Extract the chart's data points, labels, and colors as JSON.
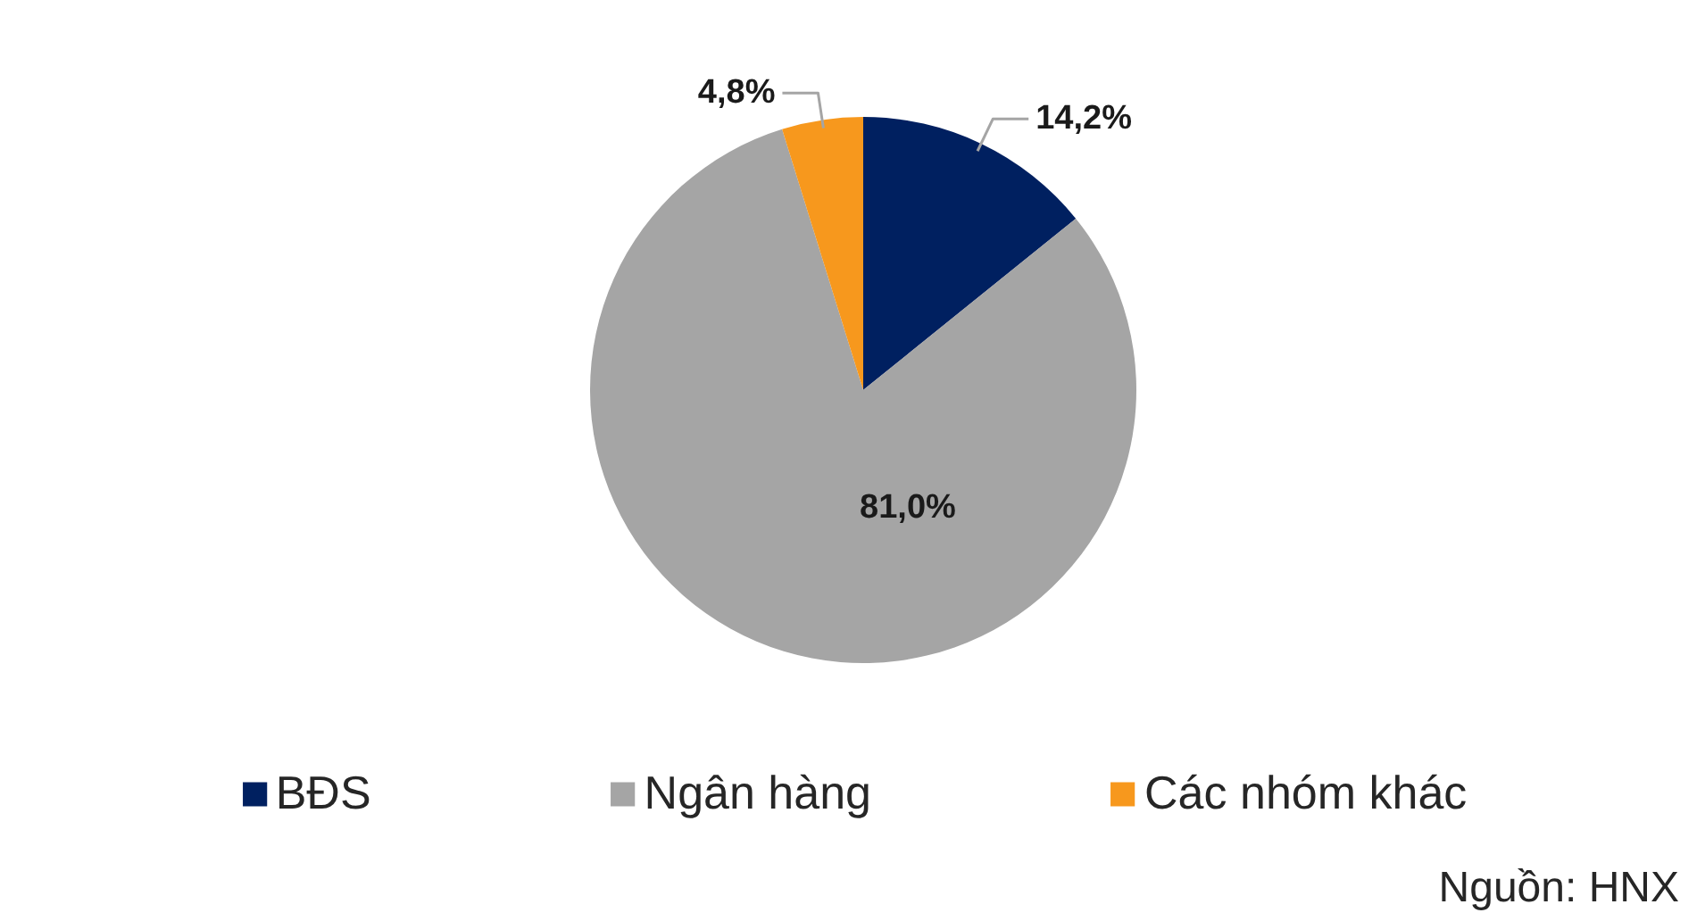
{
  "chart_data": {
    "type": "pie",
    "categories": [
      "BĐS",
      "Ngân hàng",
      "Các nhóm khác"
    ],
    "values": [
      14.2,
      81.0,
      4.8
    ],
    "colors": [
      "#002060",
      "#a5a5a5",
      "#f7981d"
    ],
    "value_labels": [
      "14,2%",
      "81,0%",
      "4,8%"
    ],
    "legend": "bottom",
    "annotations": [
      "Nguồn: HNX"
    ]
  }
}
